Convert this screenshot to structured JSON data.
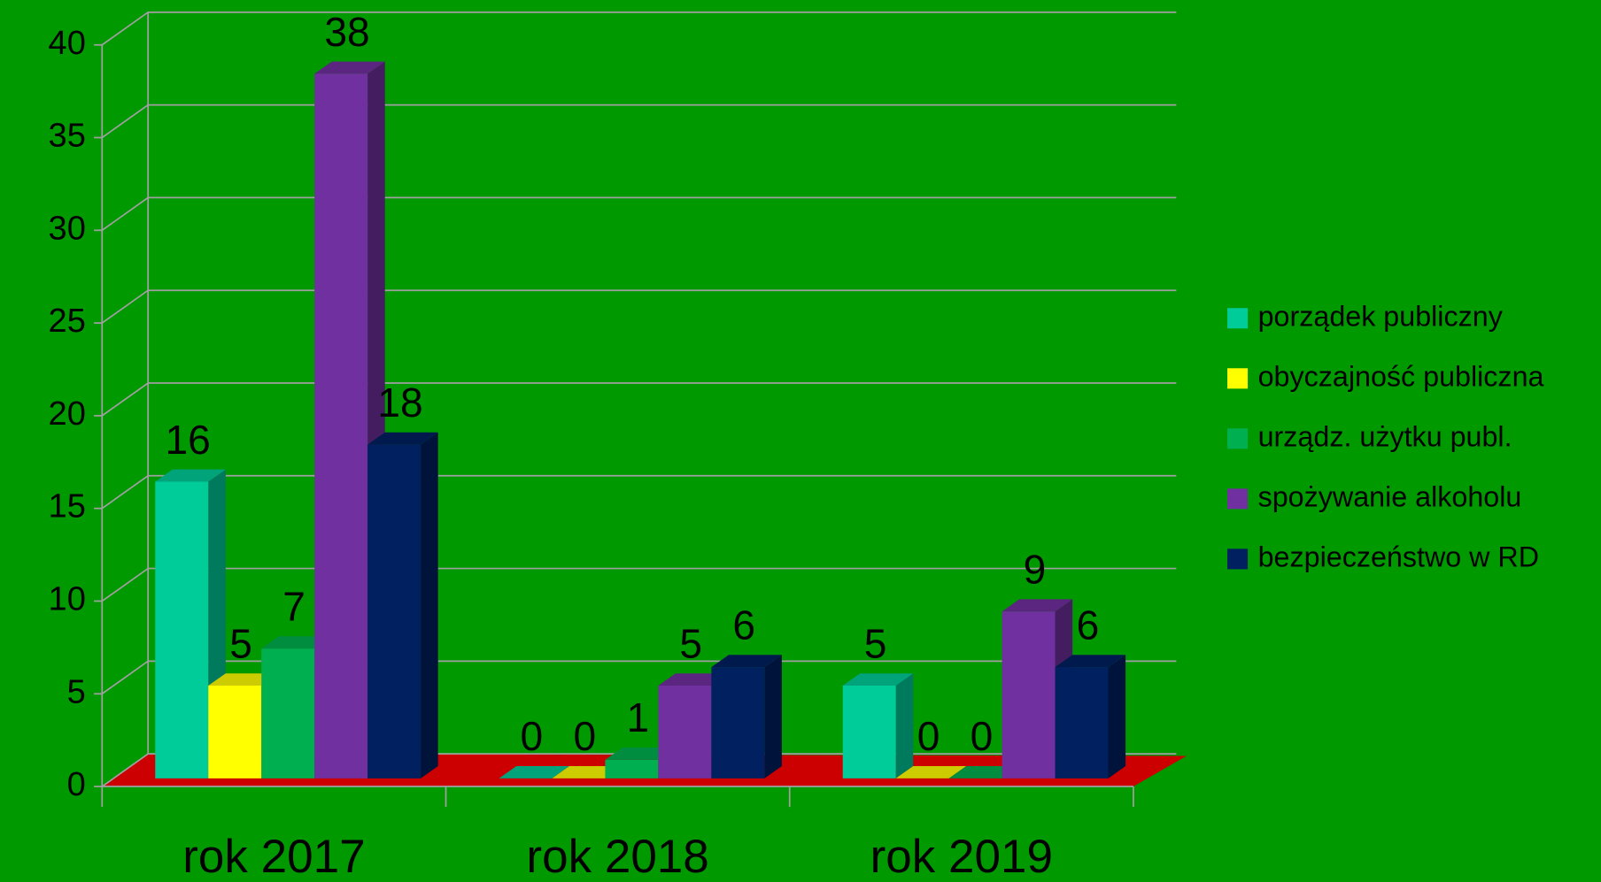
{
  "chart_data": {
    "type": "bar3d",
    "categories": [
      "rok 2017",
      "rok 2018",
      "rok 2019"
    ],
    "series": [
      {
        "name": "porządek publiczny",
        "color": "#00cc99",
        "values": [
          16,
          0,
          5
        ]
      },
      {
        "name": "obyczajność publiczna",
        "color": "#ffff00",
        "values": [
          5,
          0,
          0
        ]
      },
      {
        "name": "urządz. użytku publ.",
        "color": "#00b050",
        "values": [
          7,
          1,
          0
        ]
      },
      {
        "name": "spożywanie alkoholu",
        "color": "#7030a0",
        "values": [
          38,
          5,
          9
        ]
      },
      {
        "name": "bezpieczeństwo w RD",
        "color": "#002060",
        "values": [
          18,
          6,
          6
        ]
      }
    ],
    "ylim": [
      0,
      40
    ],
    "yticks": [
      0,
      5,
      10,
      15,
      20,
      25,
      30,
      35,
      40
    ],
    "grid": true,
    "legend": "right",
    "background": "#009900",
    "floor_color": "#cc0000"
  }
}
